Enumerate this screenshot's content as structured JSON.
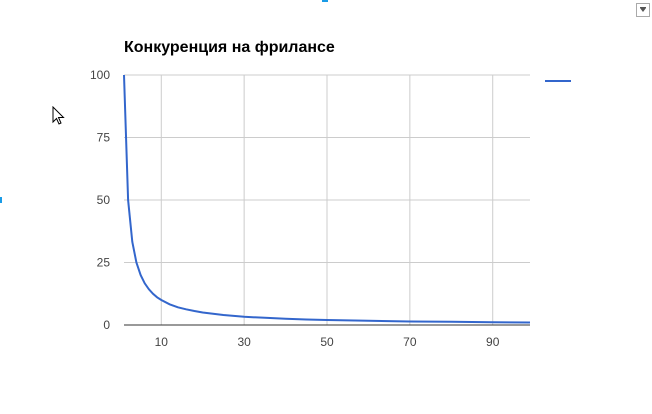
{
  "chart_data": {
    "type": "line",
    "title": "Конкуренция на фрилансе",
    "xlabel": "",
    "ylabel": "",
    "xlim": [
      1,
      99
    ],
    "ylim": [
      0,
      100
    ],
    "x_ticks": [
      10,
      30,
      50,
      70,
      90
    ],
    "y_ticks": [
      0,
      25,
      50,
      75,
      100
    ],
    "grid": true,
    "legend": "right",
    "series": [
      {
        "color": "#3366cc",
        "x": [
          1,
          2,
          3,
          4,
          5,
          6,
          7,
          8,
          9,
          10,
          12,
          14,
          16,
          18,
          20,
          25,
          30,
          35,
          40,
          45,
          50,
          60,
          70,
          80,
          90,
          99
        ],
        "y": [
          100,
          50,
          33.3,
          25,
          20,
          16.7,
          14.3,
          12.5,
          11.1,
          10,
          8.3,
          7.1,
          6.3,
          5.6,
          5,
          4,
          3.3,
          2.9,
          2.5,
          2.2,
          2,
          1.7,
          1.4,
          1.3,
          1.1,
          1.0
        ]
      }
    ]
  },
  "ui": {
    "menu_icon": "dropdown-arrow-icon",
    "cursor_icon": "mouse-pointer-icon"
  }
}
